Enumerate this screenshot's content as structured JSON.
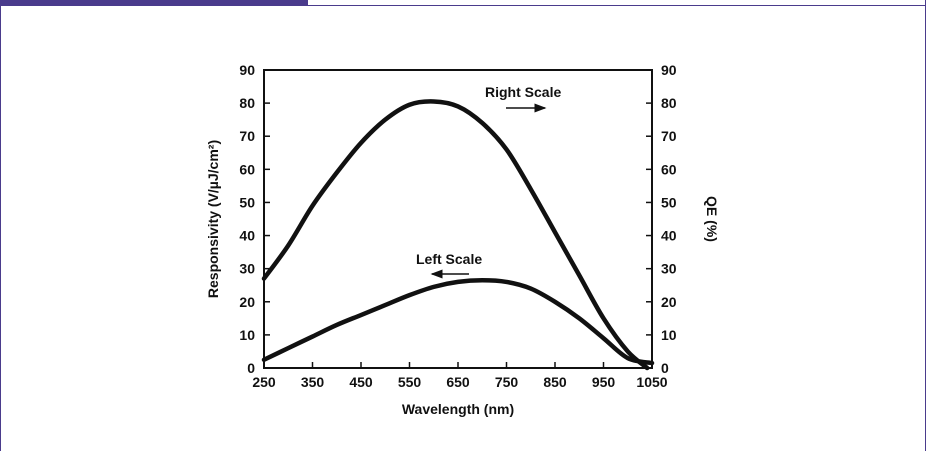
{
  "chart_data": {
    "type": "line",
    "title": "",
    "xlabel": "Wavelength (nm)",
    "ylabel_left": "Responsivity (V/µJ/cm²)",
    "ylabel_right": "QE (%)",
    "xlim": [
      250,
      1050
    ],
    "ylim_left": [
      0,
      90
    ],
    "ylim_right": [
      0,
      90
    ],
    "x_ticks": [
      250,
      350,
      450,
      550,
      650,
      750,
      850,
      950,
      1050
    ],
    "y_ticks_left": [
      0,
      10,
      20,
      30,
      40,
      50,
      60,
      70,
      80,
      90
    ],
    "y_ticks_right": [
      0,
      10,
      20,
      30,
      40,
      50,
      60,
      70,
      80,
      90
    ],
    "grid": false,
    "series": [
      {
        "name": "Right Scale",
        "axis": "right",
        "color": "#111111",
        "x": [
          250,
          300,
          350,
          400,
          450,
          500,
          550,
          600,
          650,
          700,
          750,
          800,
          850,
          900,
          950,
          1000,
          1040
        ],
        "values": [
          27,
          37,
          49,
          59,
          68,
          75,
          79.5,
          80.5,
          79,
          74,
          66,
          54,
          41,
          28,
          15,
          5,
          0
        ]
      },
      {
        "name": "Left Scale",
        "axis": "left",
        "color": "#111111",
        "x": [
          250,
          300,
          350,
          400,
          450,
          500,
          550,
          600,
          650,
          700,
          750,
          800,
          850,
          900,
          950,
          1000,
          1050
        ],
        "values": [
          2.5,
          6,
          9.5,
          13,
          16,
          19,
          22,
          24.5,
          26,
          26.5,
          26,
          24,
          20,
          15,
          9,
          3,
          1.5
        ]
      }
    ],
    "annotations": [
      {
        "text": "Right Scale",
        "arrow": "right"
      },
      {
        "text": "Left Scale",
        "arrow": "left"
      }
    ]
  }
}
